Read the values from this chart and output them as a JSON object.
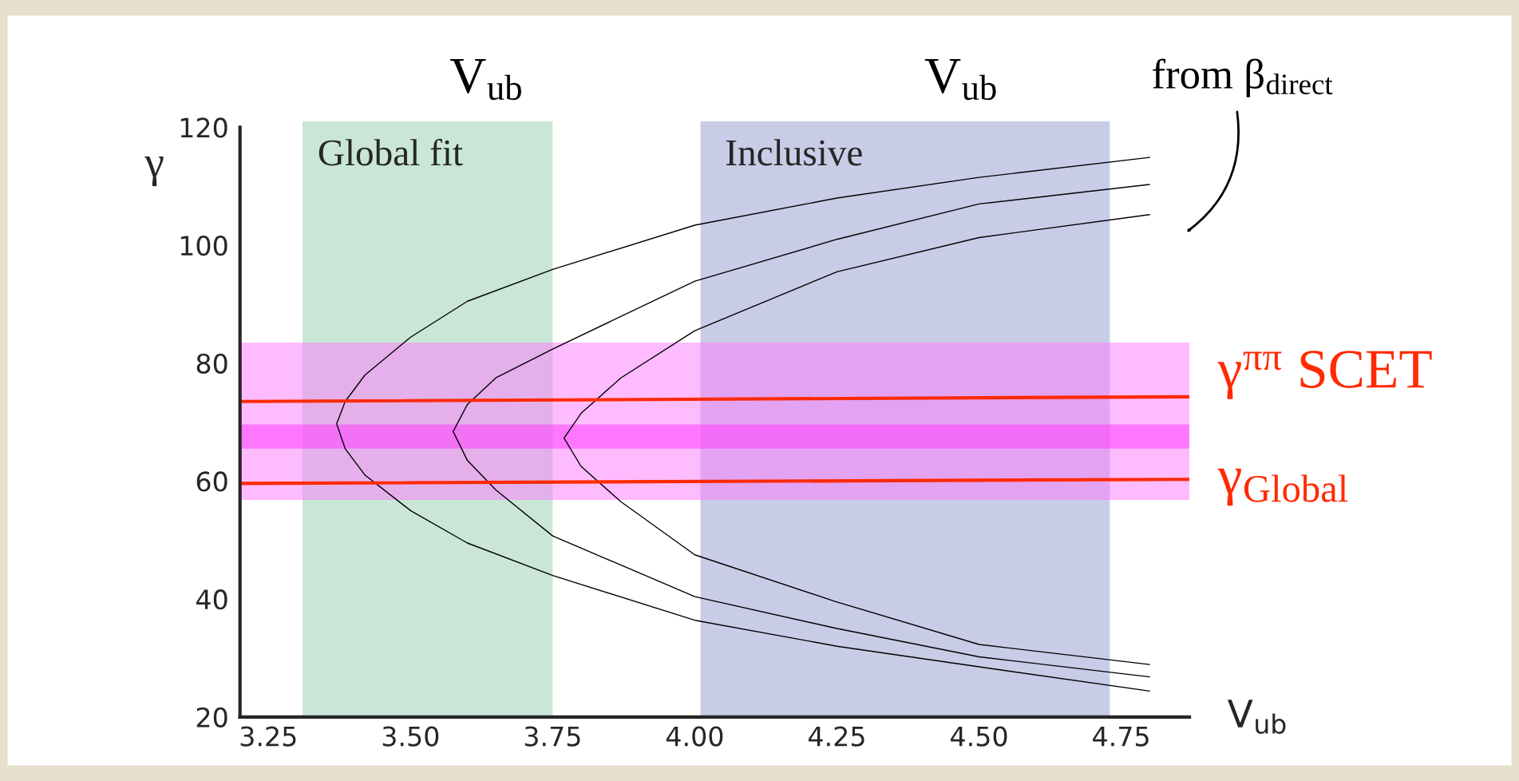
{
  "chart_data": {
    "type": "line",
    "xlabel": "V$_{ub}$",
    "ylabel": "γ",
    "xlim": [
      3.2,
      4.87
    ],
    "ylim": [
      20,
      120
    ],
    "xticks": [
      3.25,
      {
        "value": 3.5,
        "label": "3.50"
      },
      3.75,
      {
        "value": 4.0,
        "label": "4.00"
      },
      4.25,
      {
        "value": 4.5,
        "label": "4.50"
      },
      4.75
    ],
    "yticks": [
      20,
      40,
      60,
      80,
      100,
      120
    ],
    "grid": false,
    "legend": false,
    "marker": "none",
    "line_style": "solid",
    "bands": [
      {
        "axis": "x",
        "from": 3.31,
        "to": 3.75,
        "label": "Global fit",
        "color": "#c9e6d6"
      },
      {
        "axis": "x",
        "from": 4.01,
        "to": 4.73,
        "label": "Inclusive",
        "color": "#c8cce6"
      },
      {
        "axis": "y",
        "from": 56.8,
        "to": 83.5,
        "color": "#ff77ff"
      },
      {
        "axis": "y",
        "from": 65.5,
        "to": 69.6,
        "color": "#ff33ff"
      }
    ],
    "series": [
      {
        "color": "#000000",
        "x": [
          4.8,
          4.5,
          4.25,
          4.0,
          3.75,
          3.6,
          3.5,
          3.42,
          3.385,
          3.37,
          3.385,
          3.42,
          3.5,
          3.6,
          3.75,
          4.0,
          4.25,
          4.5,
          4.8
        ],
        "values": [
          114.9,
          111.5,
          108,
          103.4,
          95.9,
          90.5,
          84.4,
          78,
          73.5,
          69.7,
          65.5,
          61,
          55,
          49.5,
          44,
          36.4,
          32,
          28.5,
          24.4
        ]
      },
      {
        "color": "#000000",
        "x": [
          4.8,
          4.5,
          4.25,
          4.0,
          3.75,
          3.65,
          3.6,
          3.575,
          3.6,
          3.65,
          3.75,
          4.0,
          4.25,
          4.5,
          4.8
        ],
        "values": [
          110.3,
          107,
          101,
          93.9,
          82.4,
          77.5,
          73,
          68.4,
          63.5,
          58.5,
          50.7,
          40.4,
          35,
          30.2,
          26.8
        ]
      },
      {
        "color": "#000000",
        "x": [
          4.8,
          4.5,
          4.25,
          4.0,
          3.87,
          3.8,
          3.77,
          3.8,
          3.87,
          4.0,
          4.25,
          4.5,
          4.8
        ],
        "values": [
          105.2,
          101.3,
          95.5,
          85.5,
          77.5,
          71.5,
          67.3,
          62.5,
          56.5,
          47.5,
          39.5,
          32.3,
          28.9
        ]
      },
      {
        "color": "#ff2a00",
        "x": [
          3.2,
          4.87
        ],
        "values": [
          73.5,
          74.3
        ]
      },
      {
        "color": "#ff2a00",
        "x": [
          3.2,
          4.87
        ],
        "values": [
          59.6,
          60.3
        ]
      }
    ],
    "annotations": [
      "V$_{ub}$",
      "V$_{ub}$",
      "from β$_{direct}$",
      "γ$^{ππ}$ SCET",
      "γ$_{Global}$"
    ]
  }
}
